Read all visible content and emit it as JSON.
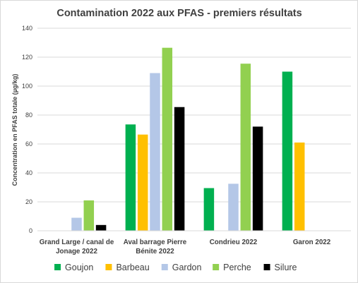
{
  "chart_data": {
    "type": "bar",
    "title": "Contamination 2022 aux PFAS - premiers résultats",
    "xlabel": "",
    "ylabel": "Concentration en PFAS totale (µg/kg)",
    "ylim": [
      0,
      140
    ],
    "yticks": [
      "0",
      "20",
      "40",
      "60",
      "80",
      "100",
      "120",
      "140"
    ],
    "grid": true,
    "legend_position": "bottom",
    "categories": [
      [
        "Grand Large / canal de",
        "Jonage 2022"
      ],
      [
        "Aval barrage Pierre",
        "Bénite 2022"
      ],
      [
        "Condrieu 2022"
      ],
      [
        "Garon 2022"
      ]
    ],
    "series": [
      {
        "name": "Goujon",
        "color": "#00b050",
        "values": [
          null,
          73.5,
          29.5,
          110
        ]
      },
      {
        "name": "Barbeau",
        "color": "#ffc000",
        "values": [
          null,
          66.5,
          null,
          61
        ]
      },
      {
        "name": "Gardon",
        "color": "#b4c7e7",
        "values": [
          9,
          109,
          32.5,
          null
        ]
      },
      {
        "name": "Perche",
        "color": "#92d050",
        "values": [
          21,
          126.5,
          115.5,
          null
        ]
      },
      {
        "name": "Silure",
        "color": "#000000",
        "values": [
          4,
          85.5,
          72,
          null
        ]
      }
    ]
  }
}
